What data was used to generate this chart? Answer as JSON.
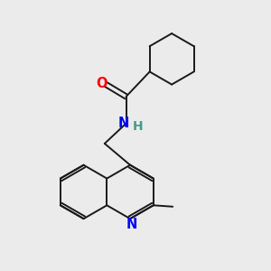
{
  "background_color": "#ebebeb",
  "bond_color": "#1a1a1a",
  "atom_colors": {
    "O": "#ff0000",
    "N_amide": "#0000ff",
    "N_ring": "#0000ff",
    "H": "#4a9a8a",
    "C": "#1a1a1a"
  },
  "figsize": [
    3.0,
    3.0
  ],
  "dpi": 100
}
